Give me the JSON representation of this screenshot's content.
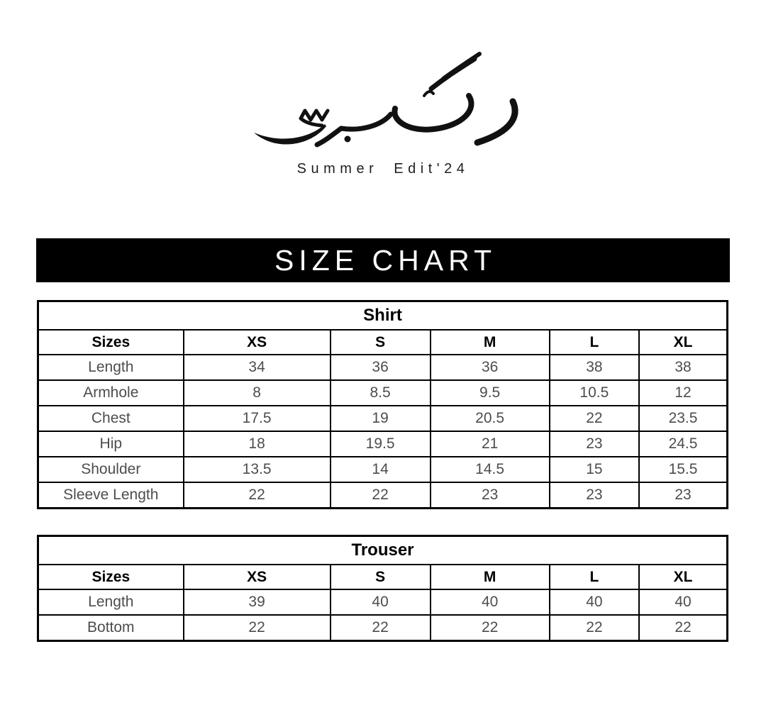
{
  "logo": {
    "calligraphy_text": "رنگ برسے",
    "subtitle": "Summer Edit'24"
  },
  "banner": {
    "title": "SIZE CHART"
  },
  "tables": [
    {
      "title": "Shirt",
      "columns": [
        "Sizes",
        "XS",
        "S",
        "M",
        "L",
        "XL"
      ],
      "rows": [
        {
          "label": "Length",
          "values": [
            "34",
            "36",
            "36",
            "38",
            "38"
          ]
        },
        {
          "label": "Armhole",
          "values": [
            "8",
            "8.5",
            "9.5",
            "10.5",
            "12"
          ]
        },
        {
          "label": "Chest",
          "values": [
            "17.5",
            "19",
            "20.5",
            "22",
            "23.5"
          ]
        },
        {
          "label": "Hip",
          "values": [
            "18",
            "19.5",
            "21",
            "23",
            "24.5"
          ]
        },
        {
          "label": "Shoulder",
          "values": [
            "13.5",
            "14",
            "14.5",
            "15",
            "15.5"
          ]
        },
        {
          "label": "Sleeve Length",
          "values": [
            "22",
            "22",
            "23",
            "23",
            "23"
          ]
        }
      ]
    },
    {
      "title": "Trouser",
      "columns": [
        "Sizes",
        "XS",
        "S",
        "M",
        "L",
        "XL"
      ],
      "rows": [
        {
          "label": "Length",
          "values": [
            "39",
            "40",
            "40",
            "40",
            "40"
          ]
        },
        {
          "label": "Bottom",
          "values": [
            "22",
            "22",
            "22",
            "22",
            "22"
          ]
        }
      ]
    }
  ],
  "colors": {
    "background": "#ffffff",
    "banner_bg": "#000000",
    "banner_text": "#ffffff",
    "border": "#000000",
    "header_text": "#000000",
    "data_text": "#4d4d4d"
  }
}
